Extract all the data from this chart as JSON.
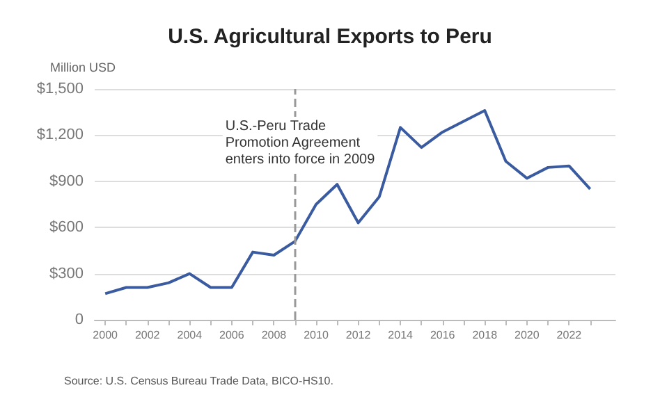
{
  "chart_data": {
    "type": "line",
    "title": "U.S. Agricultural Exports to Peru",
    "ylabel": "Million USD",
    "x": [
      2000,
      2001,
      2002,
      2003,
      2004,
      2005,
      2006,
      2007,
      2008,
      2009,
      2010,
      2011,
      2012,
      2013,
      2014,
      2015,
      2016,
      2017,
      2018,
      2019,
      2020,
      2021,
      2022,
      2023
    ],
    "series": [
      {
        "color": "#3a5ba0",
        "values": [
          170,
          210,
          210,
          240,
          300,
          210,
          210,
          440,
          420,
          510,
          750,
          880,
          630,
          800,
          1250,
          1120,
          1220,
          1290,
          1360,
          1030,
          920,
          990,
          1000,
          850
        ]
      }
    ],
    "xlim": [
      1999.5,
      2024.2
    ],
    "xticks": [
      2000,
      {
        "value": 2001,
        "label": null
      },
      2002,
      {
        "value": 2003,
        "label": null
      },
      2004,
      {
        "value": 2005,
        "label": null
      },
      2006,
      {
        "value": 2007,
        "label": null
      },
      2008,
      {
        "value": 2009,
        "label": null
      },
      2010,
      {
        "value": 2011,
        "label": null
      },
      2012,
      {
        "value": 2013,
        "label": null
      },
      2014,
      {
        "value": 2015,
        "label": null
      },
      2016,
      {
        "value": 2017,
        "label": null
      },
      2018,
      {
        "value": 2019,
        "label": null
      },
      2020,
      {
        "value": 2021,
        "label": null
      },
      2022,
      {
        "value": 2023,
        "label": null
      }
    ],
    "ylim": [
      0,
      1500
    ],
    "yticks": [
      0,
      {
        "value": 300,
        "label": "$300"
      },
      {
        "value": 600,
        "label": "$600"
      },
      {
        "value": 900,
        "label": "$900"
      },
      {
        "value": 1200,
        "label": "$1,200"
      },
      {
        "value": 1500,
        "label": "$1,500"
      }
    ],
    "grid": "y",
    "marker": "none",
    "line_style": "solid",
    "ref_lines": [
      {
        "axis": "x",
        "value": 2009,
        "label": "U.S.-Peru Trade\nPromotion Agreement\nenters into force in 2009",
        "color": "#999999",
        "line_style": "dashed"
      }
    ],
    "annotations": [
      "Source: U.S. Census Bureau Trade Data, BICO-HS10."
    ]
  }
}
